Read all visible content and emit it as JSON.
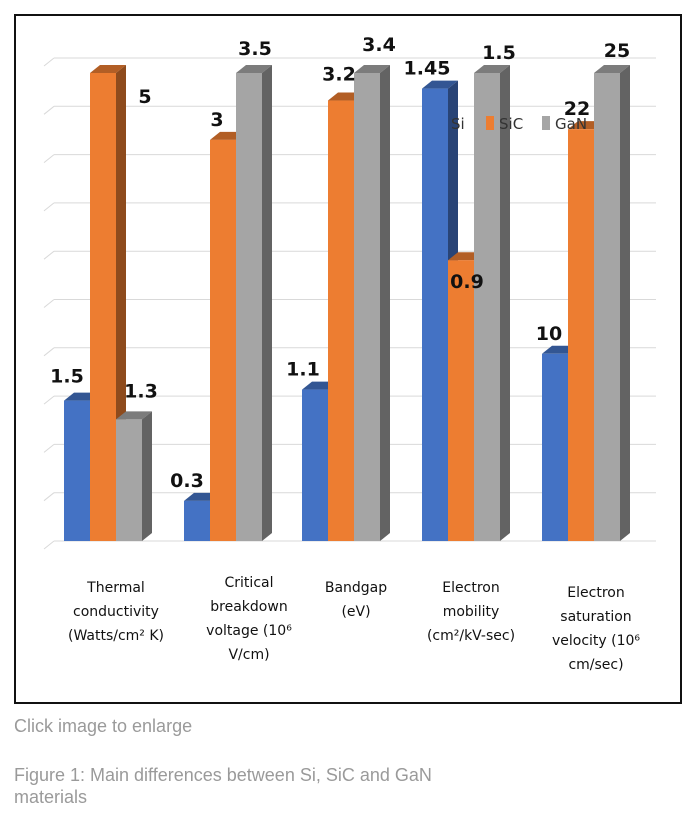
{
  "figure": {
    "click_note": "Click image to enlarge",
    "caption": "Figure 1: Main differences between Si, SiC and GaN materials"
  },
  "chart_data": {
    "type": "bar",
    "title": "",
    "xlabel": "",
    "ylabel": "",
    "grid": true,
    "legend_position": "top-right",
    "categories": [
      "Thermal conductivity (Watts/cm² K)",
      "Critical breakdown voltage (10⁶ V/cm)",
      "Bandgap (eV)",
      "Electron mobility (cm²/kV-sec)",
      "Electron saturation velocity (10⁶ cm/sec)"
    ],
    "series": [
      {
        "name": "Si",
        "color": "#4472C4",
        "values": [
          1.5,
          0.3,
          1.1,
          1.45,
          10
        ],
        "labels": [
          "1.5",
          "0.3",
          "1.1",
          "1.45",
          "10"
        ]
      },
      {
        "name": "SiC",
        "color": "#ED7D31",
        "values": [
          5,
          3,
          3.2,
          0.9,
          22
        ],
        "labels": [
          "5",
          "3",
          "3.2",
          "0.9",
          "22"
        ]
      },
      {
        "name": "GaN",
        "color": "#A5A5A5",
        "values": [
          1.3,
          3.5,
          3.4,
          1.5,
          25
        ],
        "labels": [
          "1.3",
          "3.5",
          "3.4",
          "1.5",
          "25"
        ]
      }
    ]
  }
}
